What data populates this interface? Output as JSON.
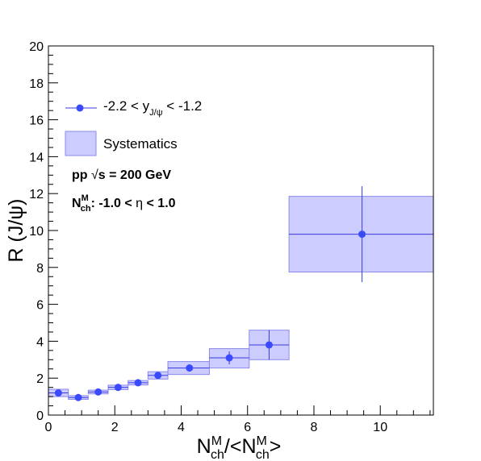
{
  "chart_data": {
    "type": "scatter",
    "title": "",
    "xlabel": {
      "main": "N",
      "sup": "M",
      "sub": "ch",
      "mid": "/<N",
      "sup2": "M",
      "sub2": "ch",
      "end": ">"
    },
    "ylabel": "R (J/ψ)",
    "xlim": [
      0,
      11.6
    ],
    "ylim": [
      0,
      20
    ],
    "x_ticks": [
      0,
      2,
      4,
      6,
      8,
      10
    ],
    "y_ticks": [
      0,
      2,
      4,
      6,
      8,
      10,
      12,
      14,
      16,
      18,
      20
    ],
    "grid": false,
    "legend_position": "top-left",
    "colors": {
      "marker": "#3a4aff",
      "box_fill": "#ccccff",
      "box_stroke": "#8a8aee",
      "line": "#3a3adf",
      "axis": "#000000"
    },
    "series": [
      {
        "name": "-2.2 < y_{J/ψ} < -1.2",
        "points": [
          {
            "x": 0.3,
            "y": 1.2,
            "x_low": 0.0,
            "x_high": 0.6,
            "stat_err": 0.1,
            "sys_low": 1.0,
            "sys_high": 1.4
          },
          {
            "x": 0.9,
            "y": 0.95,
            "x_low": 0.6,
            "x_high": 1.2,
            "stat_err": 0.08,
            "sys_low": 0.85,
            "sys_high": 1.05
          },
          {
            "x": 1.5,
            "y": 1.25,
            "x_low": 1.2,
            "x_high": 1.8,
            "stat_err": 0.1,
            "sys_low": 1.15,
            "sys_high": 1.35
          },
          {
            "x": 2.1,
            "y": 1.5,
            "x_low": 1.8,
            "x_high": 2.4,
            "stat_err": 0.1,
            "sys_low": 1.38,
            "sys_high": 1.62
          },
          {
            "x": 2.7,
            "y": 1.75,
            "x_low": 2.4,
            "x_high": 3.0,
            "stat_err": 0.12,
            "sys_low": 1.63,
            "sys_high": 1.87
          },
          {
            "x": 3.3,
            "y": 2.15,
            "x_low": 3.0,
            "x_high": 3.6,
            "stat_err": 0.15,
            "sys_low": 1.95,
            "sys_high": 2.35
          },
          {
            "x": 4.25,
            "y": 2.55,
            "x_low": 3.6,
            "x_high": 4.85,
            "stat_err": 0.2,
            "sys_low": 2.2,
            "sys_high": 2.9
          },
          {
            "x": 5.45,
            "y": 3.1,
            "x_low": 4.85,
            "x_high": 6.05,
            "stat_err": 0.35,
            "sys_low": 2.55,
            "sys_high": 3.6
          },
          {
            "x": 6.65,
            "y": 3.8,
            "x_low": 6.05,
            "x_high": 7.25,
            "stat_err": 0.8,
            "sys_low": 3.0,
            "sys_high": 4.6
          },
          {
            "x": 9.45,
            "y": 9.8,
            "x_low": 7.25,
            "x_high": 11.6,
            "stat_err": 2.6,
            "sys_low": 7.75,
            "sys_high": 11.85
          }
        ]
      }
    ],
    "legend": {
      "series_label": {
        "pre": "-2.2 < y",
        "sub": "J/ψ",
        "post": " < -1.2"
      },
      "systematics_label": "Systematics"
    },
    "annotations": {
      "energy": {
        "pre": "pp  ",
        "sqrt": "√",
        "post": "s = 200 GeV"
      },
      "multiplicity": {
        "pre": "N",
        "sup": "M",
        "sub": "ch",
        "mid": ": -1.0 <  ",
        "eta": "η",
        "post": " < 1.0"
      }
    }
  }
}
